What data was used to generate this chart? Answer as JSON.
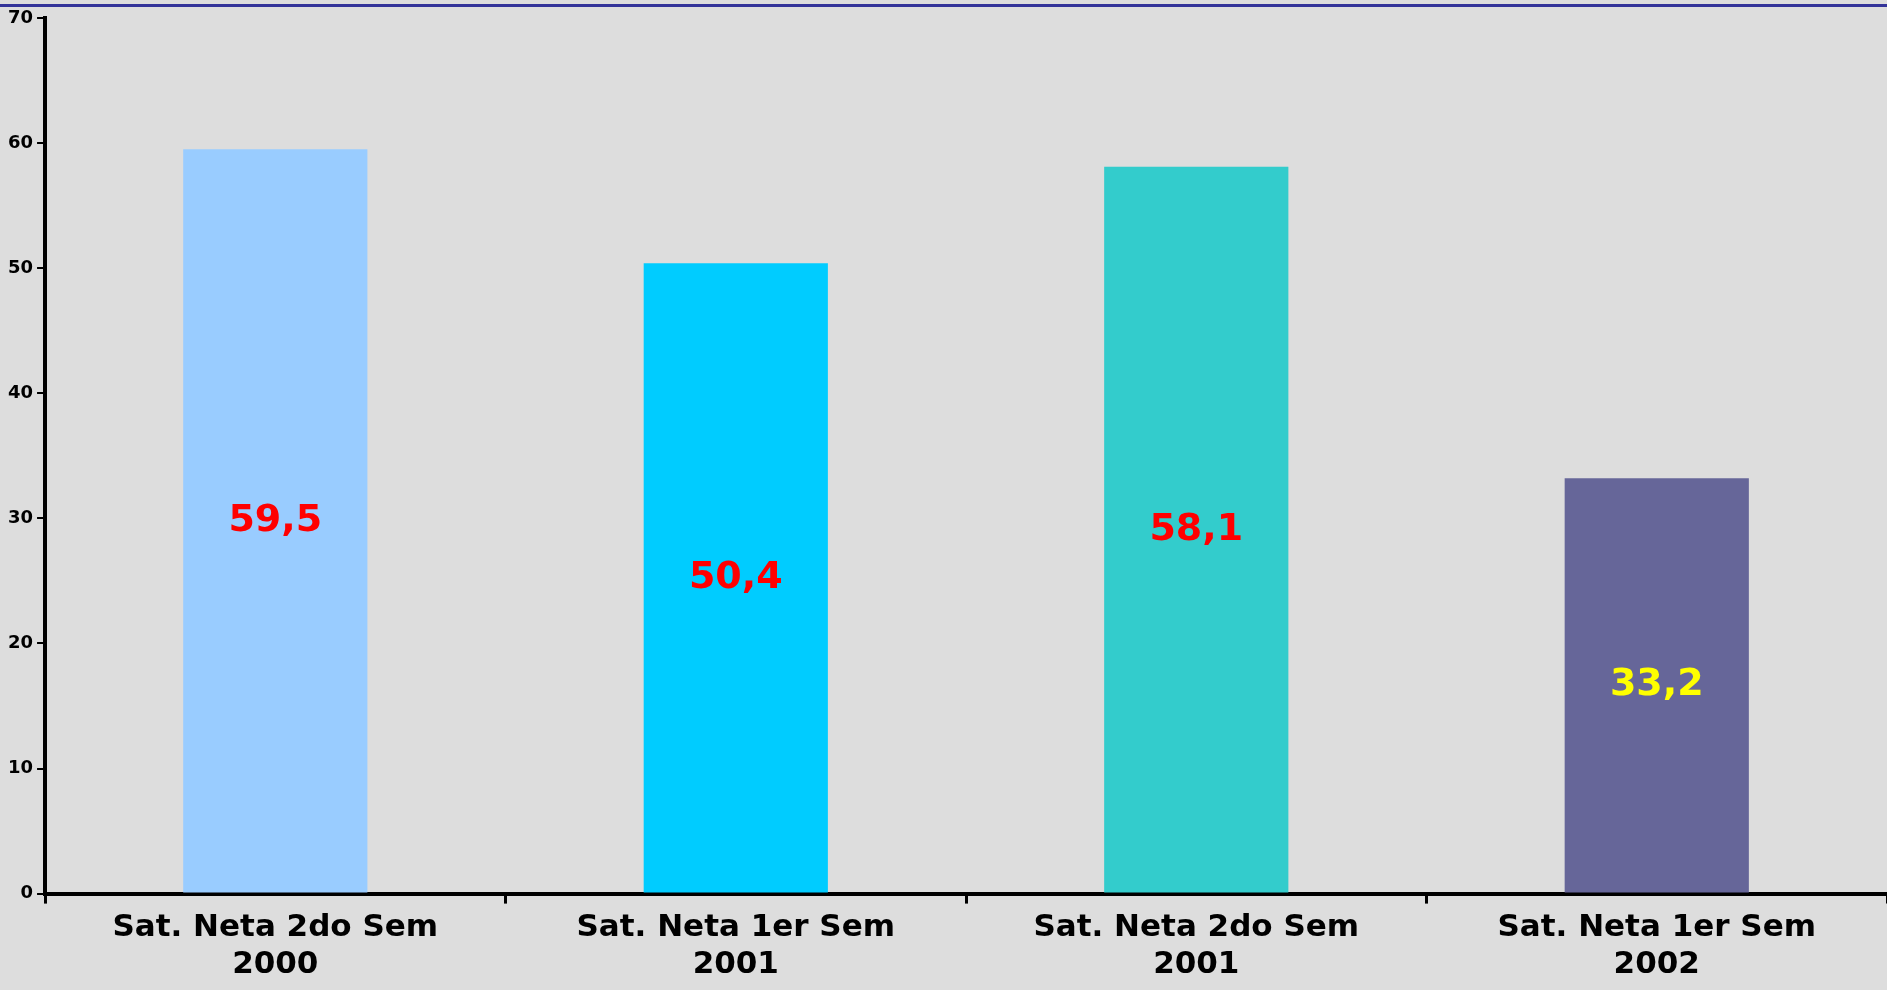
{
  "chart_data": {
    "type": "bar",
    "categories": [
      "Sat. Neta 2do Sem 2000",
      "Sat. Neta 1er Sem 2001",
      "Sat. Neta 2do Sem 2001",
      "Sat. Neta 1er Sem 2002"
    ],
    "values": [
      59.5,
      50.4,
      58.1,
      33.2
    ],
    "colors": [
      "#99ccff",
      "#00ccff",
      "#33cccc",
      "#666699"
    ],
    "value_labels": [
      "59,5",
      "50,4",
      "58,1",
      "33,2"
    ],
    "ylim": [
      0,
      70
    ],
    "yticks": [
      0,
      10,
      20,
      30,
      40,
      50,
      60,
      70
    ],
    "grid": false,
    "legend": false
  }
}
